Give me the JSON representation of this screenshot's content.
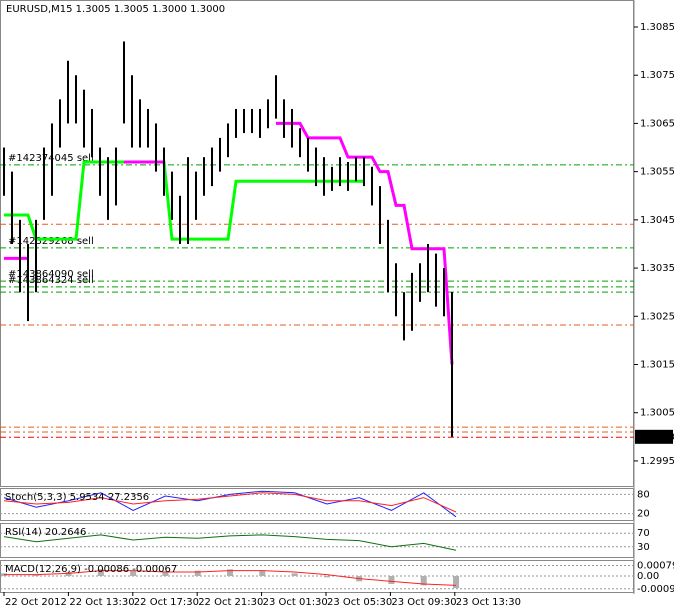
{
  "chart_data": {
    "type": "ohlc",
    "title": "EURUSD,M15  1.3005 1.3005 1.3000 1.3000",
    "bar_color": "#000000",
    "high": [
      1.306,
      1.3055,
      1.3045,
      1.304,
      1.3045,
      1.306,
      1.3065,
      1.307,
      1.3078,
      1.3075,
      1.3072,
      1.3068,
      1.306,
      1.3058,
      1.306,
      1.3082,
      1.3075,
      1.307,
      1.3068,
      1.3065,
      1.306,
      1.3055,
      1.305,
      1.3058,
      1.3055,
      1.3058,
      1.306,
      1.3062,
      1.3065,
      1.3068,
      1.3068,
      1.3068,
      1.3068,
      1.307,
      1.3075,
      1.307,
      1.3068,
      1.3064,
      1.3062,
      1.306,
      1.3058,
      1.3056,
      1.3058,
      1.3057,
      1.3058,
      1.3058,
      1.3056,
      1.3052,
      1.3045,
      1.3036,
      1.303,
      1.3034,
      1.3036,
      1.304,
      1.3038,
      1.3035,
      1.303
    ],
    "low": [
      1.305,
      1.304,
      1.303,
      1.3024,
      1.303,
      1.3045,
      1.305,
      1.306,
      1.3065,
      1.3065,
      1.306,
      1.3058,
      1.305,
      1.3045,
      1.3048,
      1.3065,
      1.306,
      1.306,
      1.306,
      1.3055,
      1.305,
      1.3045,
      1.304,
      1.304,
      1.3045,
      1.305,
      1.3052,
      1.3055,
      1.3058,
      1.3062,
      1.3063,
      1.3063,
      1.3062,
      1.3064,
      1.3066,
      1.3062,
      1.306,
      1.3058,
      1.3055,
      1.3052,
      1.305,
      1.3051,
      1.3052,
      1.3051,
      1.3053,
      1.3052,
      1.3048,
      1.304,
      1.303,
      1.3025,
      1.302,
      1.3022,
      1.3028,
      1.303,
      1.3027,
      1.3025,
      1.3
    ],
    "series": [
      {
        "color": "#00ff00",
        "values": [
          1.3046,
          1.3046,
          1.3046,
          1.3046,
          1.3041,
          1.3041,
          1.3041,
          1.3041,
          1.3041,
          1.3041,
          1.3057,
          1.3057,
          1.3057,
          1.3057,
          1.3057,
          1.3057,
          1.3057,
          1.3057,
          1.3057,
          1.3057,
          1.3057,
          1.3041,
          1.3041,
          1.3041,
          1.3041,
          1.3041,
          1.3041,
          1.3041,
          1.3041,
          1.3053,
          1.3053,
          1.3053,
          1.3053,
          1.3053,
          1.3053,
          1.3053,
          1.3053,
          1.3053,
          1.3053,
          1.3053,
          1.3053,
          1.3053,
          1.3053,
          1.3053,
          1.3053,
          1.3053,
          null,
          null,
          null,
          null,
          null,
          null,
          null,
          null,
          null,
          null,
          null
        ]
      },
      {
        "color": "#ff00ff",
        "values": [
          1.3037,
          1.3037,
          1.3037,
          1.3037,
          null,
          null,
          null,
          null,
          null,
          null,
          null,
          null,
          null,
          null,
          null,
          1.3057,
          1.3057,
          1.3057,
          1.3057,
          1.3057,
          1.3057,
          null,
          null,
          null,
          null,
          null,
          null,
          null,
          null,
          null,
          null,
          null,
          null,
          null,
          1.3065,
          1.3065,
          1.3065,
          1.3065,
          1.3062,
          1.3062,
          1.3062,
          1.3062,
          1.3062,
          1.3058,
          1.3058,
          1.3058,
          1.3058,
          1.3055,
          1.3055,
          1.3048,
          1.3048,
          1.3039,
          1.3039,
          1.3039,
          1.3039,
          1.3039,
          1.3015
        ]
      }
    ],
    "ylim": [
      1.29898,
      1.30906
    ],
    "yticks": [
      1.3085,
      1.3075,
      1.3065,
      1.3055,
      1.3045,
      1.3035,
      1.3025,
      1.3015,
      1.3005,
      1.2995
    ],
    "current_price": {
      "value": 1.3,
      "label": "1.3000"
    },
    "levels": [
      {
        "value": 1.30564,
        "color": "#00a000",
        "label": "#142374045 sell"
      },
      {
        "value": 1.30441,
        "color": "#e06020"
      },
      {
        "value": 1.30392,
        "color": "#00a000",
        "label": "#142329268 sell"
      },
      {
        "value": 1.30323,
        "color": "#00a000",
        "label": "#143864090 sell"
      },
      {
        "value": 1.30311,
        "color": "#00a000",
        "label": "#143864324 sell"
      },
      {
        "value": 1.303,
        "color": "#00a000"
      },
      {
        "value": 1.30232,
        "color": "#e06020"
      },
      {
        "value": 1.3002,
        "color": "#e06020"
      },
      {
        "value": 1.3001,
        "color": "#e06020"
      },
      {
        "value": 1.29999,
        "color": "#ff0000"
      }
    ],
    "time_labels": [
      "22 Oct 2012",
      "22 Oct 13:30",
      "22 Oct 17:30",
      "22 Oct 21:30",
      "23 Oct 01:30",
      "23 Oct 05:30",
      "23 Oct 09:30",
      "23 Oct 13:30"
    ],
    "panels": [
      {
        "title": "Stoch(5,3,3) 5.9534 27.2356",
        "ylim": [
          0,
          100
        ],
        "yticks": [
          80,
          20
        ],
        "series": [
          {
            "color": "#2020ff",
            "values": [
              70,
              40,
              60,
              85,
              30,
              75,
              60,
              80,
              90,
              85,
              50,
              70,
              30,
              85,
              10
            ]
          },
          {
            "color": "#ff2020",
            "values": [
              60,
              50,
              55,
              70,
              50,
              60,
              65,
              75,
              85,
              80,
              60,
              60,
              45,
              70,
              25
            ]
          }
        ]
      },
      {
        "title": "RSI(14) 20.2646",
        "ylim": [
          0,
          100
        ],
        "yticks": [
          70,
          30
        ],
        "series": [
          {
            "color": "#107010",
            "values": [
              60,
              45,
              55,
              65,
              50,
              58,
              55,
              62,
              65,
              60,
              52,
              48,
              30,
              40,
              20
            ]
          }
        ]
      },
      {
        "title": "MACD(12,26,9) -0.00086 -0.00067",
        "ylim": [
          -0.0012,
          0.0012
        ],
        "yticks": [
          0.00079,
          {
            "value": 0,
            "label": "0.00"
          },
          -0.00096
        ],
        "histogram": {
          "color": "#b0b0b0",
          "values": [
            0.0002,
            0.0001,
            0.0003,
            0.0005,
            0.0004,
            0.0003,
            0.0004,
            0.0005,
            0.0004,
            0.0002,
            -0.0001,
            -0.0004,
            -0.0006,
            -0.0007,
            -0.0009
          ]
        },
        "series": [
          {
            "color": "#ff2020",
            "values": [
              0.0001,
              0.0001,
              0.0002,
              0.0004,
              0.0004,
              0.0003,
              0.0003,
              0.0004,
              0.0004,
              0.0003,
              0.0001,
              -0.0002,
              -0.0004,
              -0.0006,
              -0.0007
            ]
          }
        ]
      }
    ]
  }
}
